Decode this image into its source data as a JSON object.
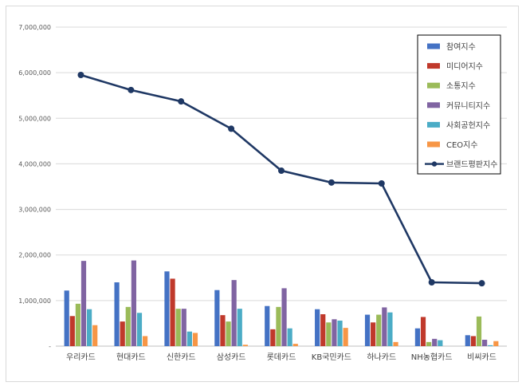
{
  "chart_data": {
    "type": "bar",
    "categories": [
      "우리카드",
      "현대카드",
      "신한카드",
      "삼성카드",
      "롯데카드",
      "KB국민카드",
      "하나카드",
      "NH농협카드",
      "비씨카드"
    ],
    "series": [
      {
        "name": "참여지수",
        "kind": "bar",
        "color": "#4472c4",
        "values": [
          1220000,
          1400000,
          1640000,
          1230000,
          880000,
          810000,
          690000,
          390000,
          240000
        ]
      },
      {
        "name": "미디어지수",
        "kind": "bar",
        "color": "#c0392b",
        "values": [
          660000,
          540000,
          1480000,
          680000,
          370000,
          700000,
          520000,
          640000,
          220000
        ]
      },
      {
        "name": "소통지수",
        "kind": "bar",
        "color": "#9bbb59",
        "values": [
          930000,
          860000,
          820000,
          540000,
          860000,
          520000,
          690000,
          90000,
          650000
        ]
      },
      {
        "name": "커뮤니티지수",
        "kind": "bar",
        "color": "#8064a2",
        "values": [
          1870000,
          1880000,
          820000,
          1450000,
          1270000,
          590000,
          850000,
          160000,
          140000
        ]
      },
      {
        "name": "사회공헌지수",
        "kind": "bar",
        "color": "#4bacc6",
        "values": [
          810000,
          730000,
          320000,
          820000,
          390000,
          560000,
          740000,
          130000,
          20000
        ]
      },
      {
        "name": "CEO지수",
        "kind": "bar",
        "color": "#f79646",
        "values": [
          460000,
          220000,
          290000,
          30000,
          50000,
          400000,
          90000,
          0,
          110000
        ]
      },
      {
        "name": "브랜드평판지수",
        "kind": "line",
        "color": "#1f3864",
        "values": [
          5950000,
          5620000,
          5370000,
          4770000,
          3850000,
          3590000,
          3570000,
          1400000,
          1380000
        ]
      }
    ],
    "yticks": [
      "-",
      "1,000,000",
      "2,000,000",
      "3,000,000",
      "4,000,000",
      "5,000,000",
      "6,000,000",
      "7,000,000"
    ],
    "ylim": [
      0,
      7000000
    ],
    "grid": true,
    "legend": "top-right"
  }
}
